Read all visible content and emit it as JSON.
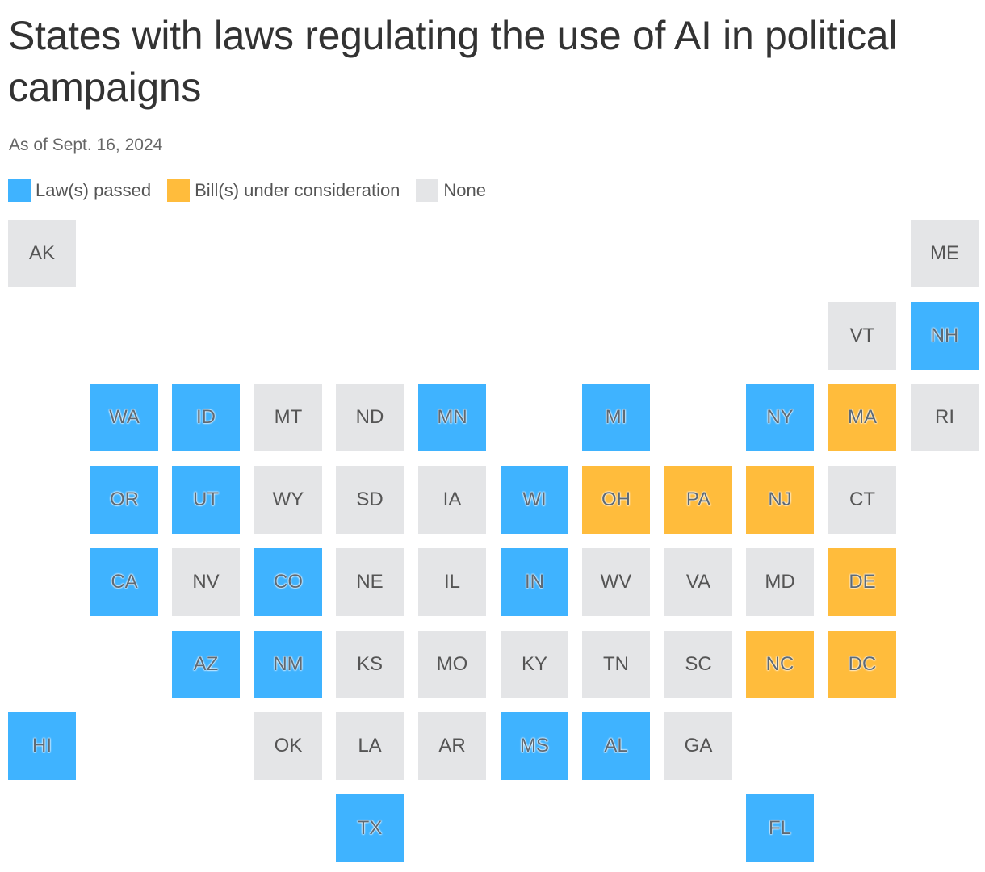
{
  "title": "States with laws regulating the use of AI in political campaigns",
  "subtitle": "As of Sept. 16, 2024",
  "colors": {
    "law": "#3fb3ff",
    "bill": "#ffbc3c",
    "none": "#e4e5e7"
  },
  "legend": [
    {
      "key": "law",
      "label": "Law(s) passed"
    },
    {
      "key": "bill",
      "label": "Bill(s) under consideration"
    },
    {
      "key": "none",
      "label": "None"
    }
  ],
  "states": [
    {
      "abbr": "AK",
      "status": "none",
      "row": 0,
      "col": 0
    },
    {
      "abbr": "ME",
      "status": "none",
      "row": 0,
      "col": 11
    },
    {
      "abbr": "VT",
      "status": "none",
      "row": 1,
      "col": 10
    },
    {
      "abbr": "NH",
      "status": "law",
      "row": 1,
      "col": 11
    },
    {
      "abbr": "WA",
      "status": "law",
      "row": 2,
      "col": 1
    },
    {
      "abbr": "ID",
      "status": "law",
      "row": 2,
      "col": 2
    },
    {
      "abbr": "MT",
      "status": "none",
      "row": 2,
      "col": 3
    },
    {
      "abbr": "ND",
      "status": "none",
      "row": 2,
      "col": 4
    },
    {
      "abbr": "MN",
      "status": "law",
      "row": 2,
      "col": 5
    },
    {
      "abbr": "MI",
      "status": "law",
      "row": 2,
      "col": 7
    },
    {
      "abbr": "NY",
      "status": "law",
      "row": 2,
      "col": 9
    },
    {
      "abbr": "MA",
      "status": "bill",
      "row": 2,
      "col": 10
    },
    {
      "abbr": "RI",
      "status": "none",
      "row": 2,
      "col": 11
    },
    {
      "abbr": "OR",
      "status": "law",
      "row": 3,
      "col": 1
    },
    {
      "abbr": "UT",
      "status": "law",
      "row": 3,
      "col": 2
    },
    {
      "abbr": "WY",
      "status": "none",
      "row": 3,
      "col": 3
    },
    {
      "abbr": "SD",
      "status": "none",
      "row": 3,
      "col": 4
    },
    {
      "abbr": "IA",
      "status": "none",
      "row": 3,
      "col": 5
    },
    {
      "abbr": "WI",
      "status": "law",
      "row": 3,
      "col": 6
    },
    {
      "abbr": "OH",
      "status": "bill",
      "row": 3,
      "col": 7
    },
    {
      "abbr": "PA",
      "status": "bill",
      "row": 3,
      "col": 8
    },
    {
      "abbr": "NJ",
      "status": "bill",
      "row": 3,
      "col": 9
    },
    {
      "abbr": "CT",
      "status": "none",
      "row": 3,
      "col": 10
    },
    {
      "abbr": "CA",
      "status": "law",
      "row": 4,
      "col": 1
    },
    {
      "abbr": "NV",
      "status": "none",
      "row": 4,
      "col": 2
    },
    {
      "abbr": "CO",
      "status": "law",
      "row": 4,
      "col": 3
    },
    {
      "abbr": "NE",
      "status": "none",
      "row": 4,
      "col": 4
    },
    {
      "abbr": "IL",
      "status": "none",
      "row": 4,
      "col": 5
    },
    {
      "abbr": "IN",
      "status": "law",
      "row": 4,
      "col": 6
    },
    {
      "abbr": "WV",
      "status": "none",
      "row": 4,
      "col": 7
    },
    {
      "abbr": "VA",
      "status": "none",
      "row": 4,
      "col": 8
    },
    {
      "abbr": "MD",
      "status": "none",
      "row": 4,
      "col": 9
    },
    {
      "abbr": "DE",
      "status": "bill",
      "row": 4,
      "col": 10
    },
    {
      "abbr": "AZ",
      "status": "law",
      "row": 5,
      "col": 2
    },
    {
      "abbr": "NM",
      "status": "law",
      "row": 5,
      "col": 3
    },
    {
      "abbr": "KS",
      "status": "none",
      "row": 5,
      "col": 4
    },
    {
      "abbr": "MO",
      "status": "none",
      "row": 5,
      "col": 5
    },
    {
      "abbr": "KY",
      "status": "none",
      "row": 5,
      "col": 6
    },
    {
      "abbr": "TN",
      "status": "none",
      "row": 5,
      "col": 7
    },
    {
      "abbr": "SC",
      "status": "none",
      "row": 5,
      "col": 8
    },
    {
      "abbr": "NC",
      "status": "bill",
      "row": 5,
      "col": 9
    },
    {
      "abbr": "DC",
      "status": "bill",
      "row": 5,
      "col": 10
    },
    {
      "abbr": "HI",
      "status": "law",
      "row": 6,
      "col": 0
    },
    {
      "abbr": "OK",
      "status": "none",
      "row": 6,
      "col": 3
    },
    {
      "abbr": "LA",
      "status": "none",
      "row": 6,
      "col": 4
    },
    {
      "abbr": "AR",
      "status": "none",
      "row": 6,
      "col": 5
    },
    {
      "abbr": "MS",
      "status": "law",
      "row": 6,
      "col": 6
    },
    {
      "abbr": "AL",
      "status": "law",
      "row": 6,
      "col": 7
    },
    {
      "abbr": "GA",
      "status": "none",
      "row": 6,
      "col": 8
    },
    {
      "abbr": "TX",
      "status": "law",
      "row": 7,
      "col": 4
    },
    {
      "abbr": "FL",
      "status": "law",
      "row": 7,
      "col": 9
    }
  ]
}
